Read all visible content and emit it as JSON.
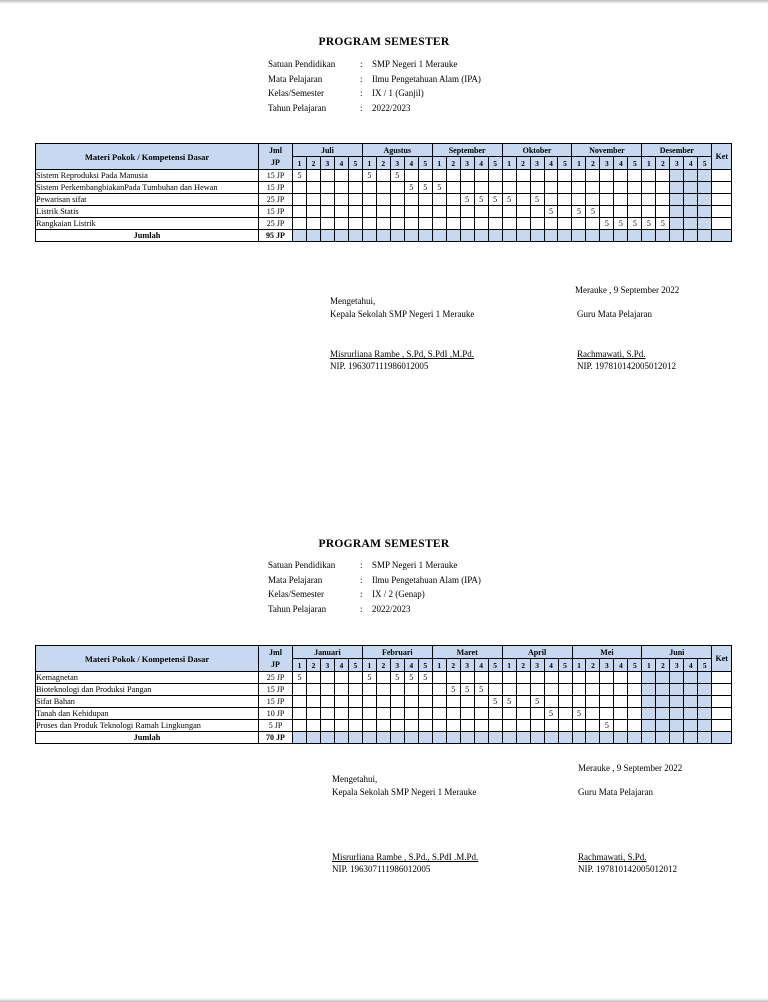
{
  "colon": ":",
  "sections": [
    {
      "title": "PROGRAM SEMESTER",
      "meta": [
        {
          "label": "Satuan Pendidikan",
          "value": "SMP Negeri 1 Merauke"
        },
        {
          "label": "Mata Pelajaran",
          "value": "Ilmu Pengetahuan Alam (IPA)"
        },
        {
          "label": "Kelas/Semester",
          "value": "IX / 1 (Ganjil)"
        },
        {
          "label": "Tahun Pelajaran",
          "value": "2022/2023"
        }
      ],
      "table": {
        "header": {
          "materi": "Materi Pokok / Kompetensi Dasar",
          "jml": [
            "Jml",
            "JP"
          ],
          "months": [
            "Juli",
            "Agustus",
            "September",
            "Oktober",
            "November",
            "Desember"
          ],
          "weeks": [
            "1",
            "2",
            "3",
            "4",
            "5"
          ],
          "ket": "Ket"
        },
        "rows": [
          {
            "materi": "Sistem Reproduksi Pada Manusia",
            "jp": "15 JP",
            "marks": {
              "0": "5",
              "5": "5",
              "7": "5"
            }
          },
          {
            "materi": "Sistem PerkembangbiakanPada Tumbuhan dan Hewan",
            "jp": "15 JP",
            "marks": {
              "8": "5",
              "9": "5",
              "10": "5"
            }
          },
          {
            "materi": "Pewarisan sifat",
            "jp": "25 JP",
            "marks": {
              "12": "5",
              "13": "5",
              "14": "5",
              "15": "5",
              "17": "5"
            }
          },
          {
            "materi": "Listrik Statis",
            "jp": "15 JP",
            "marks": {
              "18": "5",
              "20": "5",
              "21": "5"
            }
          },
          {
            "materi": "Rangkaian Listrik",
            "jp": "25 JP",
            "marks": {
              "22": "5",
              "23": "5",
              "24": "5",
              "25": "5",
              "26": "5"
            }
          }
        ],
        "jumlah": {
          "label": "Jumlah",
          "jp": "95 JP"
        },
        "shaded_cols": [
          27,
          28,
          29
        ]
      },
      "signature": {
        "place_date": "Merauke , 9 September 2022",
        "mengetahui": "Mengetahui,",
        "kepala_label": "Kepala Sekolah SMP Negeri 1 Merauke",
        "guru_label": "Guru Mata Pelajaran",
        "kepala_name": "Misrurliana Rambe , S.Pd, S.PdI ,M.Pd.",
        "kepala_nip": "NIP. 196307111986012005",
        "guru_name": "Rachmawati, S.Pd.",
        "guru_nip": "NIP. 197810142005012012"
      }
    },
    {
      "title": "PROGRAM SEMESTER",
      "meta": [
        {
          "label": "Satuan Pendidikan",
          "value": "SMP Negeri 1 Merauke"
        },
        {
          "label": "Mata Pelajaran",
          "value": "Ilmu Pengetahuan Alam (IPA)"
        },
        {
          "label": "Kelas/Semester",
          "value": "IX / 2 (Genap)"
        },
        {
          "label": "Tahun Pelajaran",
          "value": "2022/2023"
        }
      ],
      "table": {
        "header": {
          "materi": "Materi Pokok / Kompetensi Dasar",
          "jml": [
            "Jml",
            "JP"
          ],
          "months": [
            "Januari",
            "Februari",
            "Maret",
            "April",
            "Mei",
            "Juni"
          ],
          "weeks": [
            "1",
            "2",
            "3",
            "4",
            "5"
          ],
          "ket": "Ket"
        },
        "rows": [
          {
            "materi": "Kemagnetan",
            "jp": "25 JP",
            "marks": {
              "0": "5",
              "5": "5",
              "7": "5",
              "8": "5",
              "9": "5"
            }
          },
          {
            "materi": "Bioteknologi dan Produksi Pangan",
            "jp": "15 JP",
            "marks": {
              "11": "5",
              "12": "5",
              "13": "5"
            }
          },
          {
            "materi": "Sifat Bahan",
            "jp": "15 JP",
            "marks": {
              "14": "5",
              "15": "5",
              "17": "5"
            }
          },
          {
            "materi": "Tanah dan Kehidupan",
            "jp": "10 JP",
            "marks": {
              "18": "5",
              "20": "5"
            }
          },
          {
            "materi": "Proses dan Produk Teknologi Ramah Lingkungan",
            "jp": "5 JP",
            "marks": {
              "22": "5"
            }
          }
        ],
        "jumlah": {
          "label": "Jumlah",
          "jp": "70 JP"
        },
        "shaded_cols": [
          25,
          26,
          27,
          28,
          29
        ]
      },
      "signature": {
        "place_date": "Merauke , 9 September 2022",
        "mengetahui": "Mengetahui,",
        "kepala_label": "Kepala Sekolah SMP Negeri 1 Merauke",
        "guru_label": "Guru Mata Pelajaran",
        "kepala_name": "Misrurliana Rambe , S.Pd., S.PdI .M.Pd.",
        "kepala_nip": "NIP. 196307111986012005",
        "guru_name": "Rachmawati, S.Pd.",
        "guru_nip": "NIP. 197810142005012012"
      }
    }
  ]
}
